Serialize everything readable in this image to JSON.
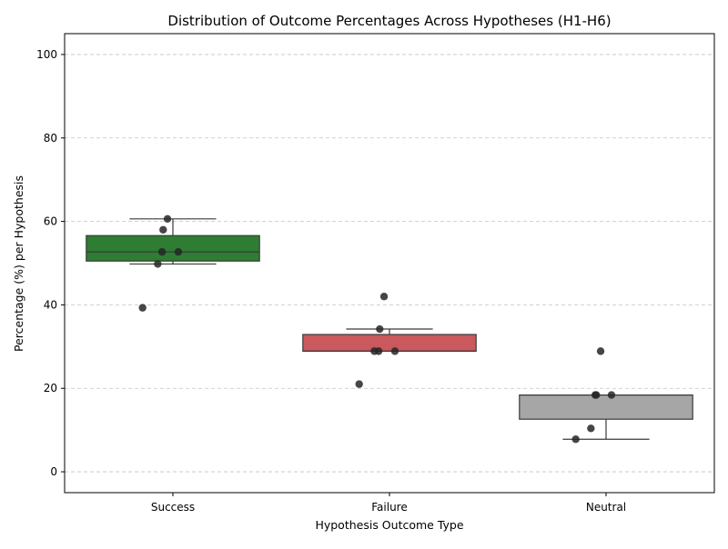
{
  "chart_data": {
    "type": "box",
    "title": "Distribution of Outcome Percentages Across Hypotheses (H1-H6)",
    "xlabel": "Hypothesis Outcome Type",
    "ylabel": "Percentage (%) per Hypothesis",
    "ylim": [
      -5,
      105
    ],
    "yticks": [
      0,
      20,
      40,
      60,
      80,
      100
    ],
    "grid": "y-dashed",
    "categories": [
      "Success",
      "Failure",
      "Neutral"
    ],
    "boxes": [
      {
        "name": "Success",
        "color": "#2e7d32",
        "q1": 50.5,
        "median": 52.7,
        "q3": 56.6,
        "whisker_low": 49.8,
        "whisker_high": 60.6,
        "points": [
          60.6,
          58.0,
          52.7,
          52.7,
          49.8,
          39.3
        ]
      },
      {
        "name": "Failure",
        "color": "#c9595c",
        "q1": 28.9,
        "median": 28.9,
        "q3": 32.9,
        "whisker_low": 28.9,
        "whisker_high": 34.2,
        "points": [
          42.0,
          34.2,
          28.9,
          28.9,
          28.9,
          21.0
        ]
      },
      {
        "name": "Neutral",
        "color": "#a6a6a6",
        "q1": 12.6,
        "median": 18.4,
        "q3": 18.4,
        "whisker_low": 7.8,
        "whisker_high": 18.4,
        "points": [
          28.9,
          18.4,
          18.4,
          18.4,
          10.4,
          7.8
        ]
      }
    ]
  }
}
